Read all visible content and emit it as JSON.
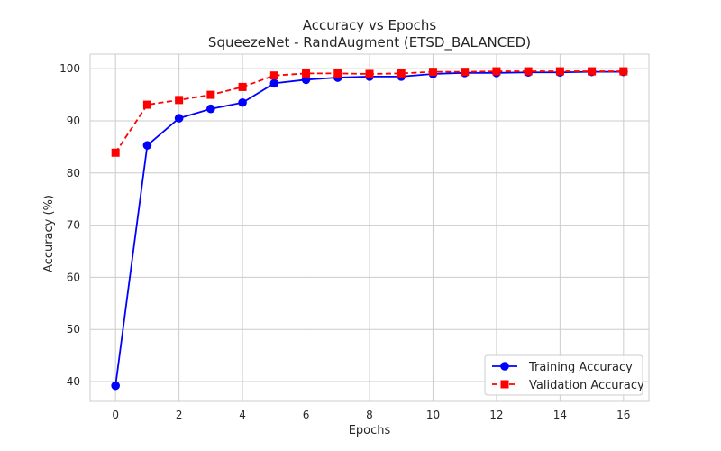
{
  "chart_data": {
    "type": "line",
    "title": "Accuracy vs Epochs",
    "subtitle": "SqueezeNet - RandAugment (ETSD_BALANCED)",
    "xlabel": "Epochs",
    "ylabel": "Accuracy (%)",
    "xlim": [
      -0.8,
      16.8
    ],
    "ylim": [
      36.2,
      102.8
    ],
    "xticks": [
      0,
      2,
      4,
      6,
      8,
      10,
      12,
      14,
      16
    ],
    "yticks": [
      40,
      50,
      60,
      70,
      80,
      90,
      100
    ],
    "grid": true,
    "legend_position": "bottom-right",
    "x": [
      0,
      1,
      2,
      3,
      4,
      5,
      6,
      7,
      8,
      9,
      10,
      11,
      12,
      13,
      14,
      15,
      16
    ],
    "series": [
      {
        "name": "Training Accuracy",
        "color": "#0000ff",
        "marker": "circle",
        "linestyle": "solid",
        "values": [
          39.2,
          85.3,
          90.5,
          92.3,
          93.5,
          97.2,
          97.9,
          98.3,
          98.5,
          98.5,
          99.0,
          99.2,
          99.2,
          99.3,
          99.3,
          99.4,
          99.4
        ]
      },
      {
        "name": "Validation Accuracy",
        "color": "#ff0000",
        "marker": "square",
        "linestyle": "dashed",
        "values": [
          83.9,
          93.1,
          94.0,
          95.0,
          96.5,
          98.7,
          99.1,
          99.1,
          99.0,
          99.1,
          99.4,
          99.4,
          99.5,
          99.5,
          99.5,
          99.5,
          99.5
        ]
      }
    ]
  }
}
